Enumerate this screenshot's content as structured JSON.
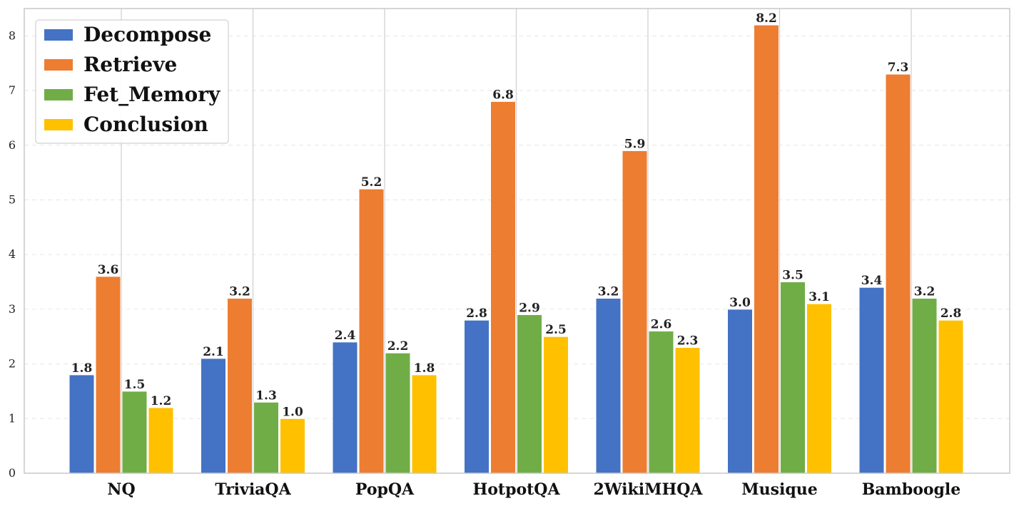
{
  "chart_data": {
    "type": "bar",
    "title": "",
    "xlabel": "",
    "ylabel": "",
    "ylim": [
      0,
      8.5
    ],
    "yticks": [
      0,
      1,
      2,
      3,
      4,
      5,
      6,
      7,
      8
    ],
    "grid": "y-dashed, x-solid at categories",
    "legend_position": "top-left",
    "categories": [
      "NQ",
      "TriviaQA",
      "PopQA",
      "HotpotQA",
      "2WikiMHQA",
      "Musique",
      "Bamboogle"
    ],
    "series": [
      {
        "name": "Decompose",
        "color": "#4472C4",
        "values": [
          1.8,
          2.1,
          2.4,
          2.8,
          3.2,
          3.0,
          3.4
        ],
        "labels": [
          "1.8",
          "2.1",
          "2.4",
          "2.8",
          "3.2",
          "3.0",
          "3.4"
        ]
      },
      {
        "name": "Retrieve",
        "color": "#ED7D31",
        "values": [
          3.6,
          3.2,
          5.2,
          6.8,
          5.9,
          8.2,
          7.3
        ],
        "labels": [
          "3.6",
          "3.2",
          "5.2",
          "6.8",
          "5.9",
          "8.2",
          "7.3"
        ]
      },
      {
        "name": "Fet_Memory",
        "color": "#70AD47",
        "values": [
          1.5,
          1.3,
          2.2,
          2.9,
          2.6,
          3.5,
          3.2
        ],
        "labels": [
          "1.5",
          "1.3",
          "2.2",
          "2.9",
          "2.6",
          "3.5",
          "3.2"
        ]
      },
      {
        "name": "Conclusion",
        "color": "#FFC000",
        "values": [
          1.2,
          1.0,
          1.8,
          2.5,
          2.3,
          3.1,
          2.8
        ],
        "labels": [
          "1.2",
          "1.0",
          "1.8",
          "2.5",
          "2.3",
          "3.1",
          "2.8"
        ]
      }
    ]
  }
}
